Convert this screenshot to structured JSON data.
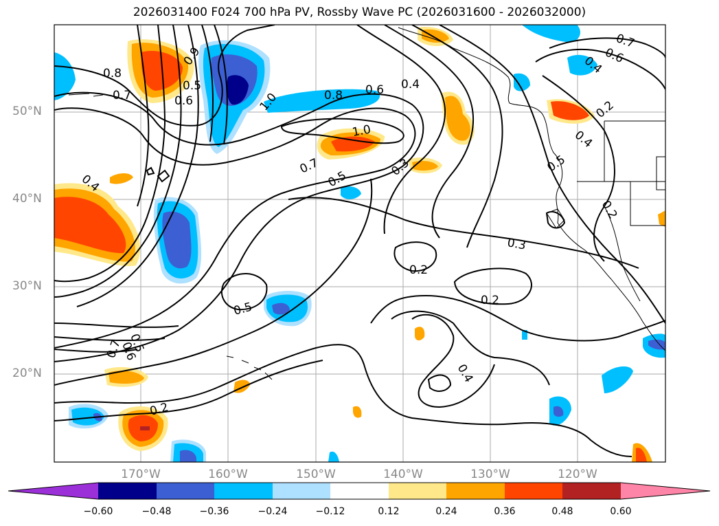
{
  "title": "2026031400 F024 700 hPa PV, Rossby Wave PC (2026031600 - 2026032000)",
  "latitude_labels": [
    "50°N",
    "40°N",
    "30°N",
    "20°N"
  ],
  "longitude_labels": [
    "170°W",
    "160°W",
    "150°W",
    "140°W",
    "130°W",
    "120°W"
  ],
  "contour_labels": [
    "0.8",
    "0.7",
    "0.6",
    "0.5",
    "0.9",
    "1.0",
    "0.8",
    "0.6",
    "0.4",
    "0.7",
    "0.6",
    "0.4",
    "0.2",
    "0.4",
    "0.5",
    "1.0",
    "0.7",
    "0.5",
    "0.3",
    "0.4",
    "0.3",
    "0.2",
    "0.2",
    "0.5",
    "0.5",
    "0.6",
    "0.7",
    "0.2",
    "0.4",
    "0.2"
  ],
  "colorbar": {
    "ticks": [
      "−0.60",
      "−0.48",
      "−0.36",
      "−0.24",
      "−0.12",
      "0.12",
      "0.24",
      "0.36",
      "0.48",
      "0.60"
    ],
    "colors": [
      "#9b30d9",
      "#00008b",
      "#3c5fd4",
      "#00bfff",
      "#aee0ff",
      "#ffffff",
      "#ffe88a",
      "#ffa500",
      "#ff4500",
      "#b22222",
      "#ff85a8"
    ]
  }
}
